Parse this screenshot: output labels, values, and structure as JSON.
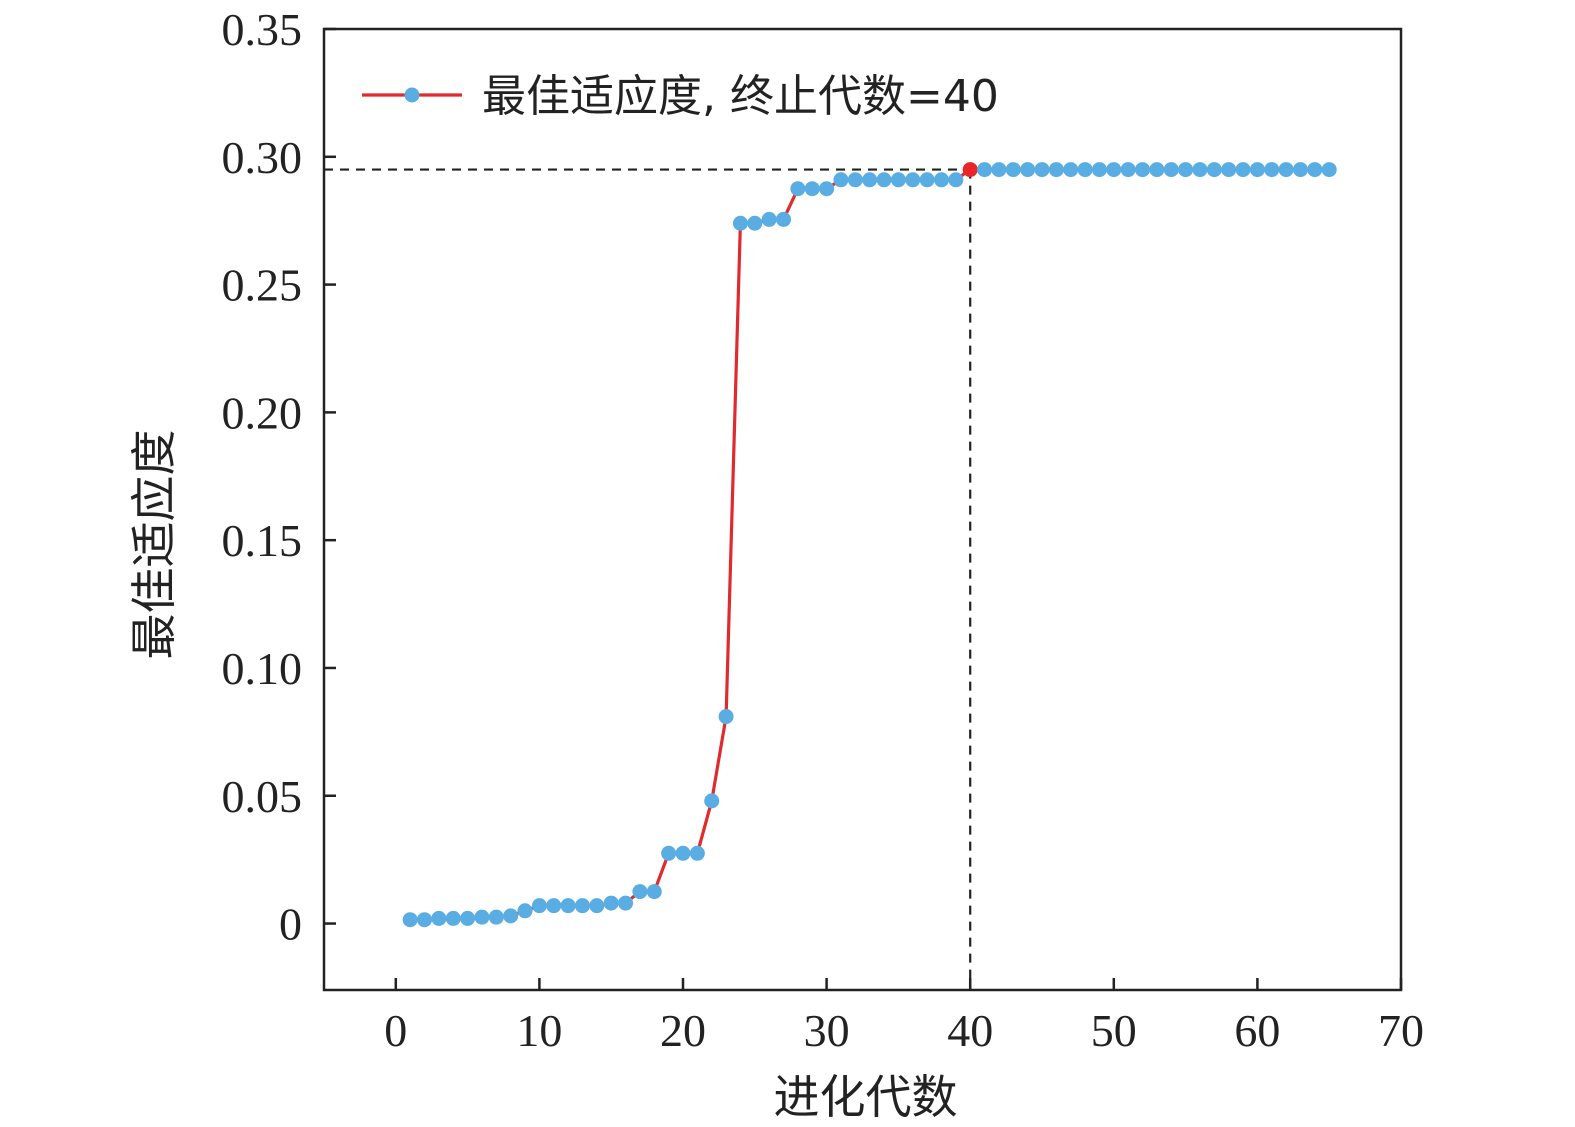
{
  "chart_data": {
    "type": "line",
    "xlabel": "进化代数",
    "ylabel": "最佳适应度",
    "xlim": [
      -5,
      70
    ],
    "ylim": [
      -0.026,
      0.35
    ],
    "xticks": [
      0,
      10,
      20,
      30,
      40,
      50,
      60,
      70
    ],
    "xtick_labels": [
      "0",
      "10",
      "20",
      "30",
      "40",
      "50",
      "60",
      "70"
    ],
    "yticks": [
      0,
      0.05,
      0.1,
      0.15,
      0.2,
      0.25,
      0.3,
      0.35
    ],
    "ytick_labels": [
      "0",
      "0.05",
      "0.10",
      "0.15",
      "0.20",
      "0.25",
      "0.30",
      "0.35"
    ],
    "grid": false,
    "legend_position": "top-left",
    "termination": {
      "x": 40,
      "y": 0.295,
      "color": "#e8252a"
    },
    "colors": {
      "line": "#e02a2e",
      "marker": "#5aade3",
      "reference": "#222222"
    },
    "series": [
      {
        "name": "最佳适应度, 终止代数=40",
        "x": [
          1,
          2,
          3,
          4,
          5,
          6,
          7,
          8,
          9,
          10,
          11,
          12,
          13,
          14,
          15,
          16,
          17,
          18,
          19,
          20,
          21,
          22,
          23,
          24,
          25,
          26,
          27,
          28,
          29,
          30,
          31,
          32,
          33,
          34,
          35,
          36,
          37,
          38,
          39,
          40,
          41,
          42,
          43,
          44,
          45,
          46,
          47,
          48,
          49,
          50,
          51,
          52,
          53,
          54,
          55,
          56,
          57,
          58,
          59,
          60,
          61,
          62,
          63,
          64,
          65
        ],
        "values": [
          0.0015,
          0.0015,
          0.002,
          0.002,
          0.002,
          0.0025,
          0.0025,
          0.003,
          0.005,
          0.007,
          0.007,
          0.007,
          0.007,
          0.007,
          0.008,
          0.008,
          0.0125,
          0.0125,
          0.0275,
          0.0275,
          0.0275,
          0.048,
          0.081,
          0.274,
          0.274,
          0.2755,
          0.2755,
          0.2875,
          0.2875,
          0.2875,
          0.291,
          0.291,
          0.291,
          0.291,
          0.291,
          0.291,
          0.291,
          0.291,
          0.291,
          0.295,
          0.295,
          0.295,
          0.295,
          0.295,
          0.295,
          0.295,
          0.295,
          0.295,
          0.295,
          0.295,
          0.295,
          0.295,
          0.295,
          0.295,
          0.295,
          0.295,
          0.295,
          0.295,
          0.295,
          0.295,
          0.295,
          0.295,
          0.295,
          0.295,
          0.295
        ]
      }
    ]
  }
}
